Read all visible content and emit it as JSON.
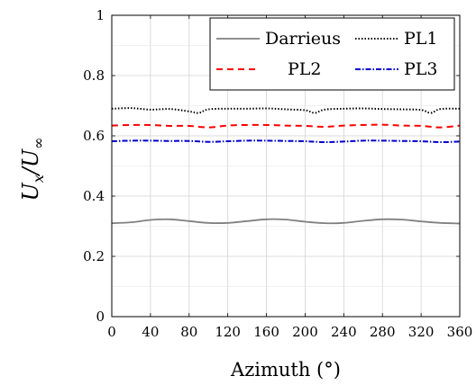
{
  "chart_data": {
    "type": "line",
    "xlabel": "Azimuth (°)",
    "ylabel": "U_x/U_∞",
    "ylabel_parts": {
      "u1": "U",
      "sub1": "x",
      "slash": "/",
      "u2": "U",
      "sub2": "∞"
    },
    "xlim": [
      0,
      360
    ],
    "ylim": [
      0,
      1
    ],
    "x_ticks": [
      0,
      40,
      80,
      120,
      160,
      200,
      240,
      280,
      320,
      360
    ],
    "x_tick_labels": [
      "0",
      "40",
      "80",
      "120",
      "160",
      "200",
      "240",
      "280",
      "320",
      "360"
    ],
    "y_ticks": [
      0,
      0.2,
      0.4,
      0.6,
      0.8,
      1
    ],
    "y_tick_labels": [
      "0",
      "0.2",
      "0.4",
      "0.6",
      "0.8",
      "1"
    ],
    "grid": true,
    "legend_position": "top-right",
    "series": [
      {
        "name": "Darrieus",
        "color": "#808080",
        "style": "solid",
        "x": [
          0,
          20,
          40,
          60,
          80,
          100,
          120,
          140,
          160,
          180,
          200,
          220,
          240,
          260,
          280,
          300,
          320,
          340,
          360
        ],
        "y": [
          0.31,
          0.313,
          0.321,
          0.323,
          0.317,
          0.311,
          0.311,
          0.317,
          0.323,
          0.322,
          0.315,
          0.31,
          0.311,
          0.318,
          0.323,
          0.322,
          0.316,
          0.311,
          0.309
        ]
      },
      {
        "name": "PL1",
        "color": "#000000",
        "style": "dotted",
        "x": [
          0,
          20,
          40,
          60,
          80,
          90,
          100,
          120,
          140,
          160,
          180,
          200,
          210,
          220,
          240,
          260,
          280,
          300,
          320,
          330,
          340,
          360
        ],
        "y": [
          0.69,
          0.692,
          0.687,
          0.689,
          0.681,
          0.676,
          0.688,
          0.69,
          0.69,
          0.691,
          0.688,
          0.685,
          0.676,
          0.687,
          0.69,
          0.691,
          0.689,
          0.688,
          0.686,
          0.676,
          0.689,
          0.69
        ]
      },
      {
        "name": "PL2",
        "color": "#ff0000",
        "style": "dashed",
        "x": [
          0,
          20,
          40,
          60,
          80,
          100,
          120,
          140,
          160,
          180,
          200,
          220,
          240,
          260,
          280,
          300,
          320,
          340,
          360
        ],
        "y": [
          0.634,
          0.636,
          0.636,
          0.633,
          0.633,
          0.628,
          0.634,
          0.636,
          0.636,
          0.634,
          0.633,
          0.63,
          0.634,
          0.636,
          0.637,
          0.634,
          0.633,
          0.628,
          0.634
        ]
      },
      {
        "name": "PL3",
        "color": "#0000cc",
        "style": "dashdot",
        "x": [
          0,
          20,
          40,
          60,
          80,
          100,
          120,
          140,
          160,
          180,
          200,
          220,
          240,
          260,
          280,
          300,
          320,
          340,
          360
        ],
        "y": [
          0.582,
          0.584,
          0.584,
          0.583,
          0.583,
          0.58,
          0.582,
          0.584,
          0.584,
          0.583,
          0.582,
          0.579,
          0.581,
          0.584,
          0.584,
          0.583,
          0.582,
          0.579,
          0.581
        ]
      }
    ]
  }
}
